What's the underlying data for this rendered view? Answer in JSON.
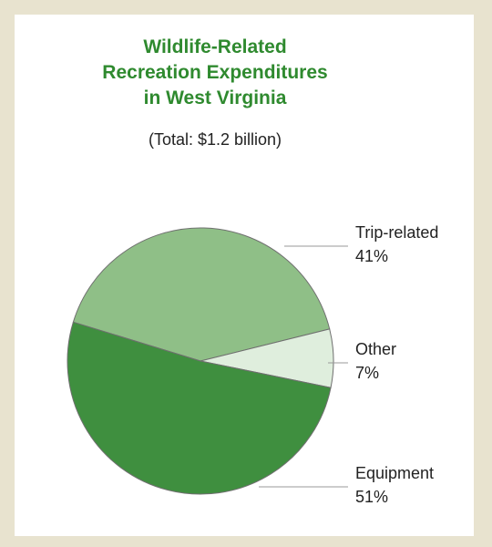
{
  "chart_data": {
    "type": "pie",
    "title_lines": [
      "Wildlife-Related",
      "Recreation Expenditures",
      "in West Virginia"
    ],
    "subtitle": "(Total: $1.2 billion)",
    "slices": [
      {
        "label": "Trip-related",
        "pct_text": "41%",
        "value": 41,
        "color": "#8fbf87"
      },
      {
        "label": "Other",
        "pct_text": "7%",
        "value": 7,
        "color": "#dfeedd"
      },
      {
        "label": "Equipment",
        "pct_text": "51%",
        "value": 51,
        "color": "#3f8f3f"
      }
    ]
  }
}
